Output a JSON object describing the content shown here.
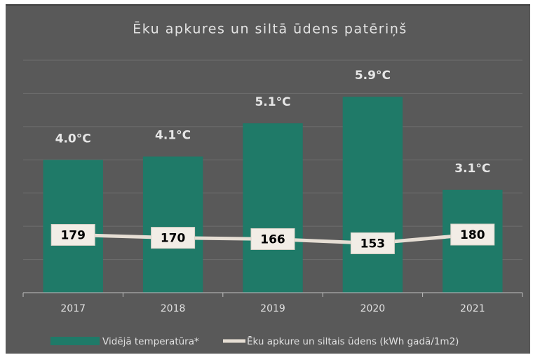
{
  "chart_data": {
    "type": "bar-line",
    "title": "Ēku apkures un siltā ūdens patēriņš",
    "categories": [
      "2017",
      "2018",
      "2019",
      "2020",
      "2021"
    ],
    "series": [
      {
        "name": "Vidējā temperatūra*",
        "color": "#1f7a68",
        "type": "bar",
        "axis": "y",
        "values": [
          4.0,
          4.1,
          5.1,
          5.9,
          3.1
        ],
        "value_labels": [
          "4.0°C",
          "4.1°C",
          "5.1°C",
          "5.9°C",
          "3.1°C"
        ]
      },
      {
        "name": "Ēku apkure un siltais ūdens (kWh gadā/1m2)",
        "color": "#e6ded4",
        "type": "line",
        "axis": "y2",
        "values": [
          179,
          170,
          166,
          153,
          180
        ]
      }
    ],
    "ylim": [
      0,
      7
    ],
    "yticks": [
      0,
      1,
      2,
      3,
      4,
      5,
      6,
      7
    ],
    "grid": true,
    "y2lim": [
      0,
      720
    ]
  }
}
